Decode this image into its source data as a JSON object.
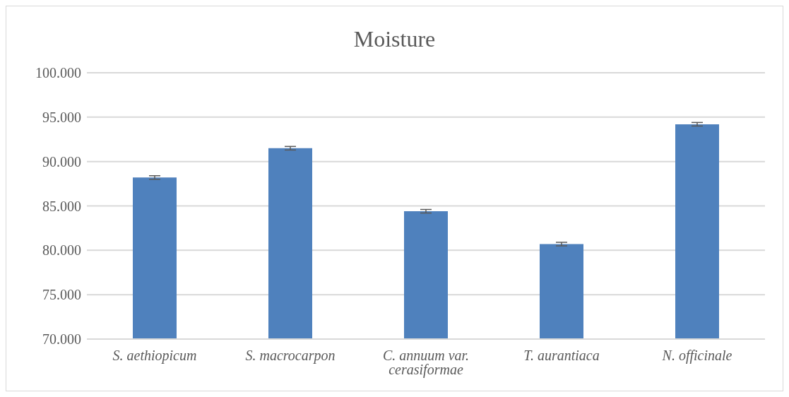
{
  "chart_data": {
    "type": "bar",
    "title": "Moisture",
    "categories": [
      "S. aethiopicum",
      "S. macrocarpon",
      "C. annuum var. cerasiformae",
      "T. aurantiaca",
      "N. officinale"
    ],
    "values": [
      88.2,
      91.5,
      84.4,
      80.7,
      94.2
    ],
    "errors": [
      0.2,
      0.2,
      0.2,
      0.2,
      0.2
    ],
    "color": "#4f81bd",
    "ylim": [
      70,
      100
    ],
    "yticks": [
      {
        "value": 70,
        "label": "70.000"
      },
      {
        "value": 75,
        "label": "75.000"
      },
      {
        "value": 80,
        "label": "80.000"
      },
      {
        "value": 85,
        "label": "85.000"
      },
      {
        "value": 90,
        "label": "90.000"
      },
      {
        "value": 95,
        "label": "95.000"
      },
      {
        "value": 100,
        "label": "100.000"
      }
    ],
    "grid": "y"
  }
}
